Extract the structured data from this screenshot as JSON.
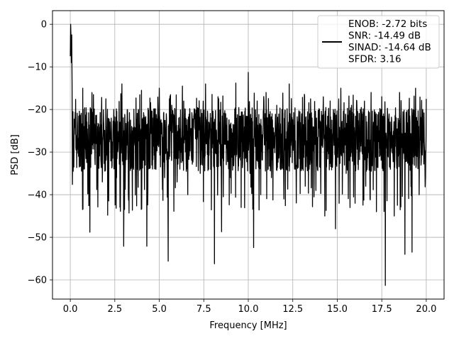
{
  "chart_data": {
    "type": "line",
    "title": "",
    "xlabel": "Frequency [MHz]",
    "ylabel": "PSD [dB]",
    "xlim": [
      -1.0,
      21.0
    ],
    "ylim": [
      -64.5,
      3.2
    ],
    "xticks": [
      0.0,
      2.5,
      5.0,
      7.5,
      10.0,
      12.5,
      15.0,
      17.5,
      20.0
    ],
    "xtick_labels": [
      "0.0",
      "2.5",
      "5.0",
      "7.5",
      "10.0",
      "12.5",
      "15.0",
      "17.5",
      "20.0"
    ],
    "yticks": [
      0,
      -10,
      -20,
      -30,
      -40,
      -50,
      -60
    ],
    "ytick_labels": [
      "0",
      "−10",
      "−20",
      "−30",
      "−40",
      "−50",
      "−60"
    ],
    "grid": true,
    "legend_position": "top-right",
    "series_color": "#000000",
    "legend": {
      "lines": [
        "ENOB: -2.72 bits",
        "SNR: -14.49 dB",
        "SINAD: -14.64 dB",
        "SFDR: 3.16"
      ]
    },
    "series": [
      {
        "name": "ENOB: -2.72 bits SNR: -14.49 dB SINAD: -14.64 dB SFDR: 3.16",
        "description": "Noisy PSD trace from 0 to 20 MHz; peak 0 dB at DC, noise floor mostly between -35 and -20 dB",
        "points": [
          [
            0.0,
            -7.5
          ],
          [
            0.02,
            0.0
          ],
          [
            0.04,
            -3.0
          ],
          [
            0.06,
            -9.0
          ],
          [
            0.08,
            -2.5
          ],
          [
            0.1,
            -14.0
          ],
          [
            0.12,
            -37.6
          ],
          [
            0.15,
            -20.5
          ],
          [
            0.2,
            -33.5
          ],
          [
            0.3,
            -17.6
          ],
          [
            0.4,
            -24.0
          ],
          [
            0.5,
            -33.5
          ],
          [
            0.7,
            -15.0
          ],
          [
            0.9,
            -31.0
          ],
          [
            1.1,
            -48.8
          ],
          [
            1.3,
            -16.5
          ],
          [
            1.5,
            -28.5
          ],
          [
            1.8,
            -37.0
          ],
          [
            2.0,
            -17.5
          ],
          [
            2.1,
            -44.8
          ],
          [
            2.3,
            -22.0
          ],
          [
            2.6,
            -36.0
          ],
          [
            2.9,
            -14.0
          ],
          [
            3.0,
            -52.1
          ],
          [
            3.2,
            -20.0
          ],
          [
            3.3,
            -44.3
          ],
          [
            3.5,
            -25.0
          ],
          [
            3.8,
            -33.0
          ],
          [
            4.0,
            -15.5
          ],
          [
            4.3,
            -52.1
          ],
          [
            4.5,
            -22.0
          ],
          [
            4.8,
            -34.0
          ],
          [
            5.0,
            -15.0
          ],
          [
            5.3,
            -36.0
          ],
          [
            5.5,
            -55.6
          ],
          [
            5.7,
            -19.0
          ],
          [
            6.0,
            -37.0
          ],
          [
            6.3,
            -14.5
          ],
          [
            6.6,
            -40.0
          ],
          [
            7.0,
            -20.0
          ],
          [
            7.3,
            -35.0
          ],
          [
            7.6,
            -14.0
          ],
          [
            8.0,
            -28.0
          ],
          [
            8.1,
            -56.2
          ],
          [
            8.3,
            -17.0
          ],
          [
            8.5,
            -48.7
          ],
          [
            8.8,
            -22.0
          ],
          [
            9.0,
            -36.0
          ],
          [
            9.3,
            -13.8
          ],
          [
            9.6,
            -43.0
          ],
          [
            10.0,
            -11.3
          ],
          [
            10.1,
            -35.0
          ],
          [
            10.3,
            -52.4
          ],
          [
            10.5,
            -18.0
          ],
          [
            10.7,
            -40.0
          ],
          [
            11.0,
            -16.0
          ],
          [
            11.3,
            -36.0
          ],
          [
            11.6,
            -19.0
          ],
          [
            12.0,
            -41.0
          ],
          [
            12.3,
            -14.0
          ],
          [
            12.6,
            -34.0
          ],
          [
            13.0,
            -21.0
          ],
          [
            13.2,
            -38.0
          ],
          [
            13.5,
            -17.5
          ],
          [
            13.8,
            -39.0
          ],
          [
            14.0,
            -20.0
          ],
          [
            14.3,
            -45.0
          ],
          [
            14.6,
            -18.0
          ],
          [
            14.9,
            -48.0
          ],
          [
            15.2,
            -15.0
          ],
          [
            15.5,
            -35.0
          ],
          [
            15.8,
            -19.0
          ],
          [
            16.0,
            -42.0
          ],
          [
            16.3,
            -20.0
          ],
          [
            16.6,
            -38.0
          ],
          [
            16.9,
            -16.0
          ],
          [
            17.2,
            -44.0
          ],
          [
            17.5,
            -17.0
          ],
          [
            17.7,
            -61.3
          ],
          [
            17.9,
            -22.0
          ],
          [
            18.2,
            -45.0
          ],
          [
            18.5,
            -16.0
          ],
          [
            18.8,
            -54.0
          ],
          [
            19.0,
            -20.0
          ],
          [
            19.2,
            -53.5
          ],
          [
            19.4,
            -15.0
          ],
          [
            19.6,
            -40.0
          ],
          [
            19.8,
            -20.0
          ],
          [
            19.95,
            -36.0
          ],
          [
            20.0,
            -17.5
          ]
        ]
      }
    ]
  }
}
